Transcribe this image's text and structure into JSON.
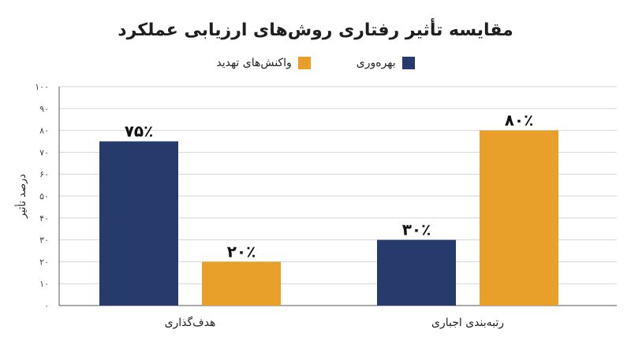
{
  "chart_data": {
    "type": "bar",
    "title": "مقایسه تأثیر رفتاری روش‌های ارزیابی عملکرد",
    "ylabel": "درصد تأثیر",
    "xlabel": "",
    "ylim": [
      0,
      100
    ],
    "y_ticks": [
      "۰",
      "۱۰",
      "۲۰",
      "۳۰",
      "۴۰",
      "۵۰",
      "۶۰",
      "۷۰",
      "۸۰",
      "۹۰",
      "۱۰۰"
    ],
    "categories": [
      "هدف‌گذاری",
      "رتبه‌بندی اجباری"
    ],
    "series": [
      {
        "name": "بهره‌وری",
        "color": "#263a6b",
        "values": [
          75,
          30
        ],
        "labels": [
          "۷۵٪",
          "۳۰٪"
        ]
      },
      {
        "name": "واکنش‌های تهدید",
        "color": "#e8a02a",
        "values": [
          20,
          80
        ],
        "labels": [
          "۲۰٪",
          "۸۰٪"
        ]
      }
    ],
    "grid": true,
    "legend_position": "top-center"
  }
}
